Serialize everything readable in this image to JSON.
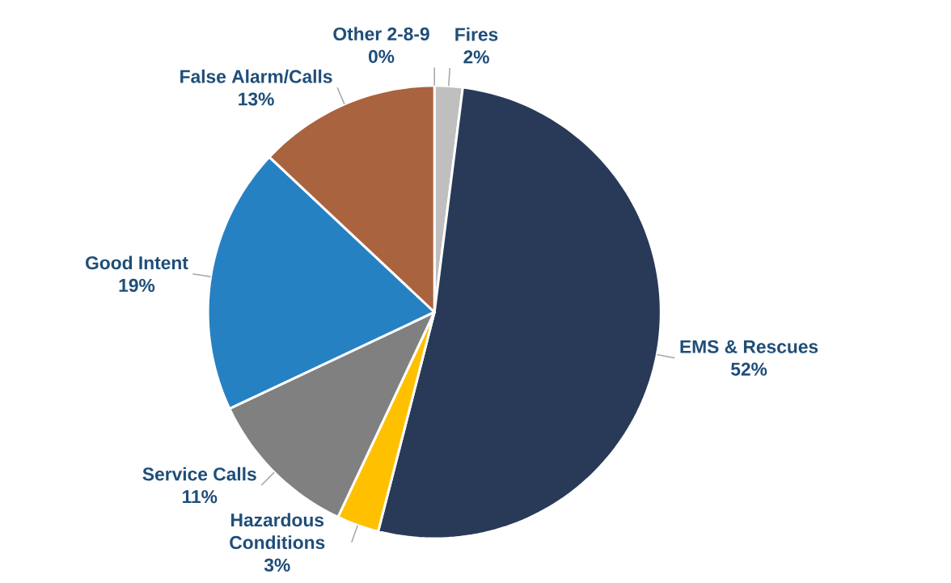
{
  "chart_data": {
    "type": "pie",
    "categories": [
      "Fires",
      "EMS & Rescues",
      "Hazardous Conditions",
      "Service Calls",
      "Good Intent",
      "False Alarm/Calls",
      "Other 2-8-9"
    ],
    "values": [
      2,
      52,
      3,
      11,
      19,
      13,
      0
    ],
    "colors": [
      "#bfbfbf",
      "#283a58",
      "#ffc000",
      "#808080",
      "#2681c3",
      "#a9633e",
      "#264478"
    ],
    "value_labels": [
      "2%",
      "52%",
      "3%",
      "11%",
      "19%",
      "13%",
      "0%"
    ]
  }
}
